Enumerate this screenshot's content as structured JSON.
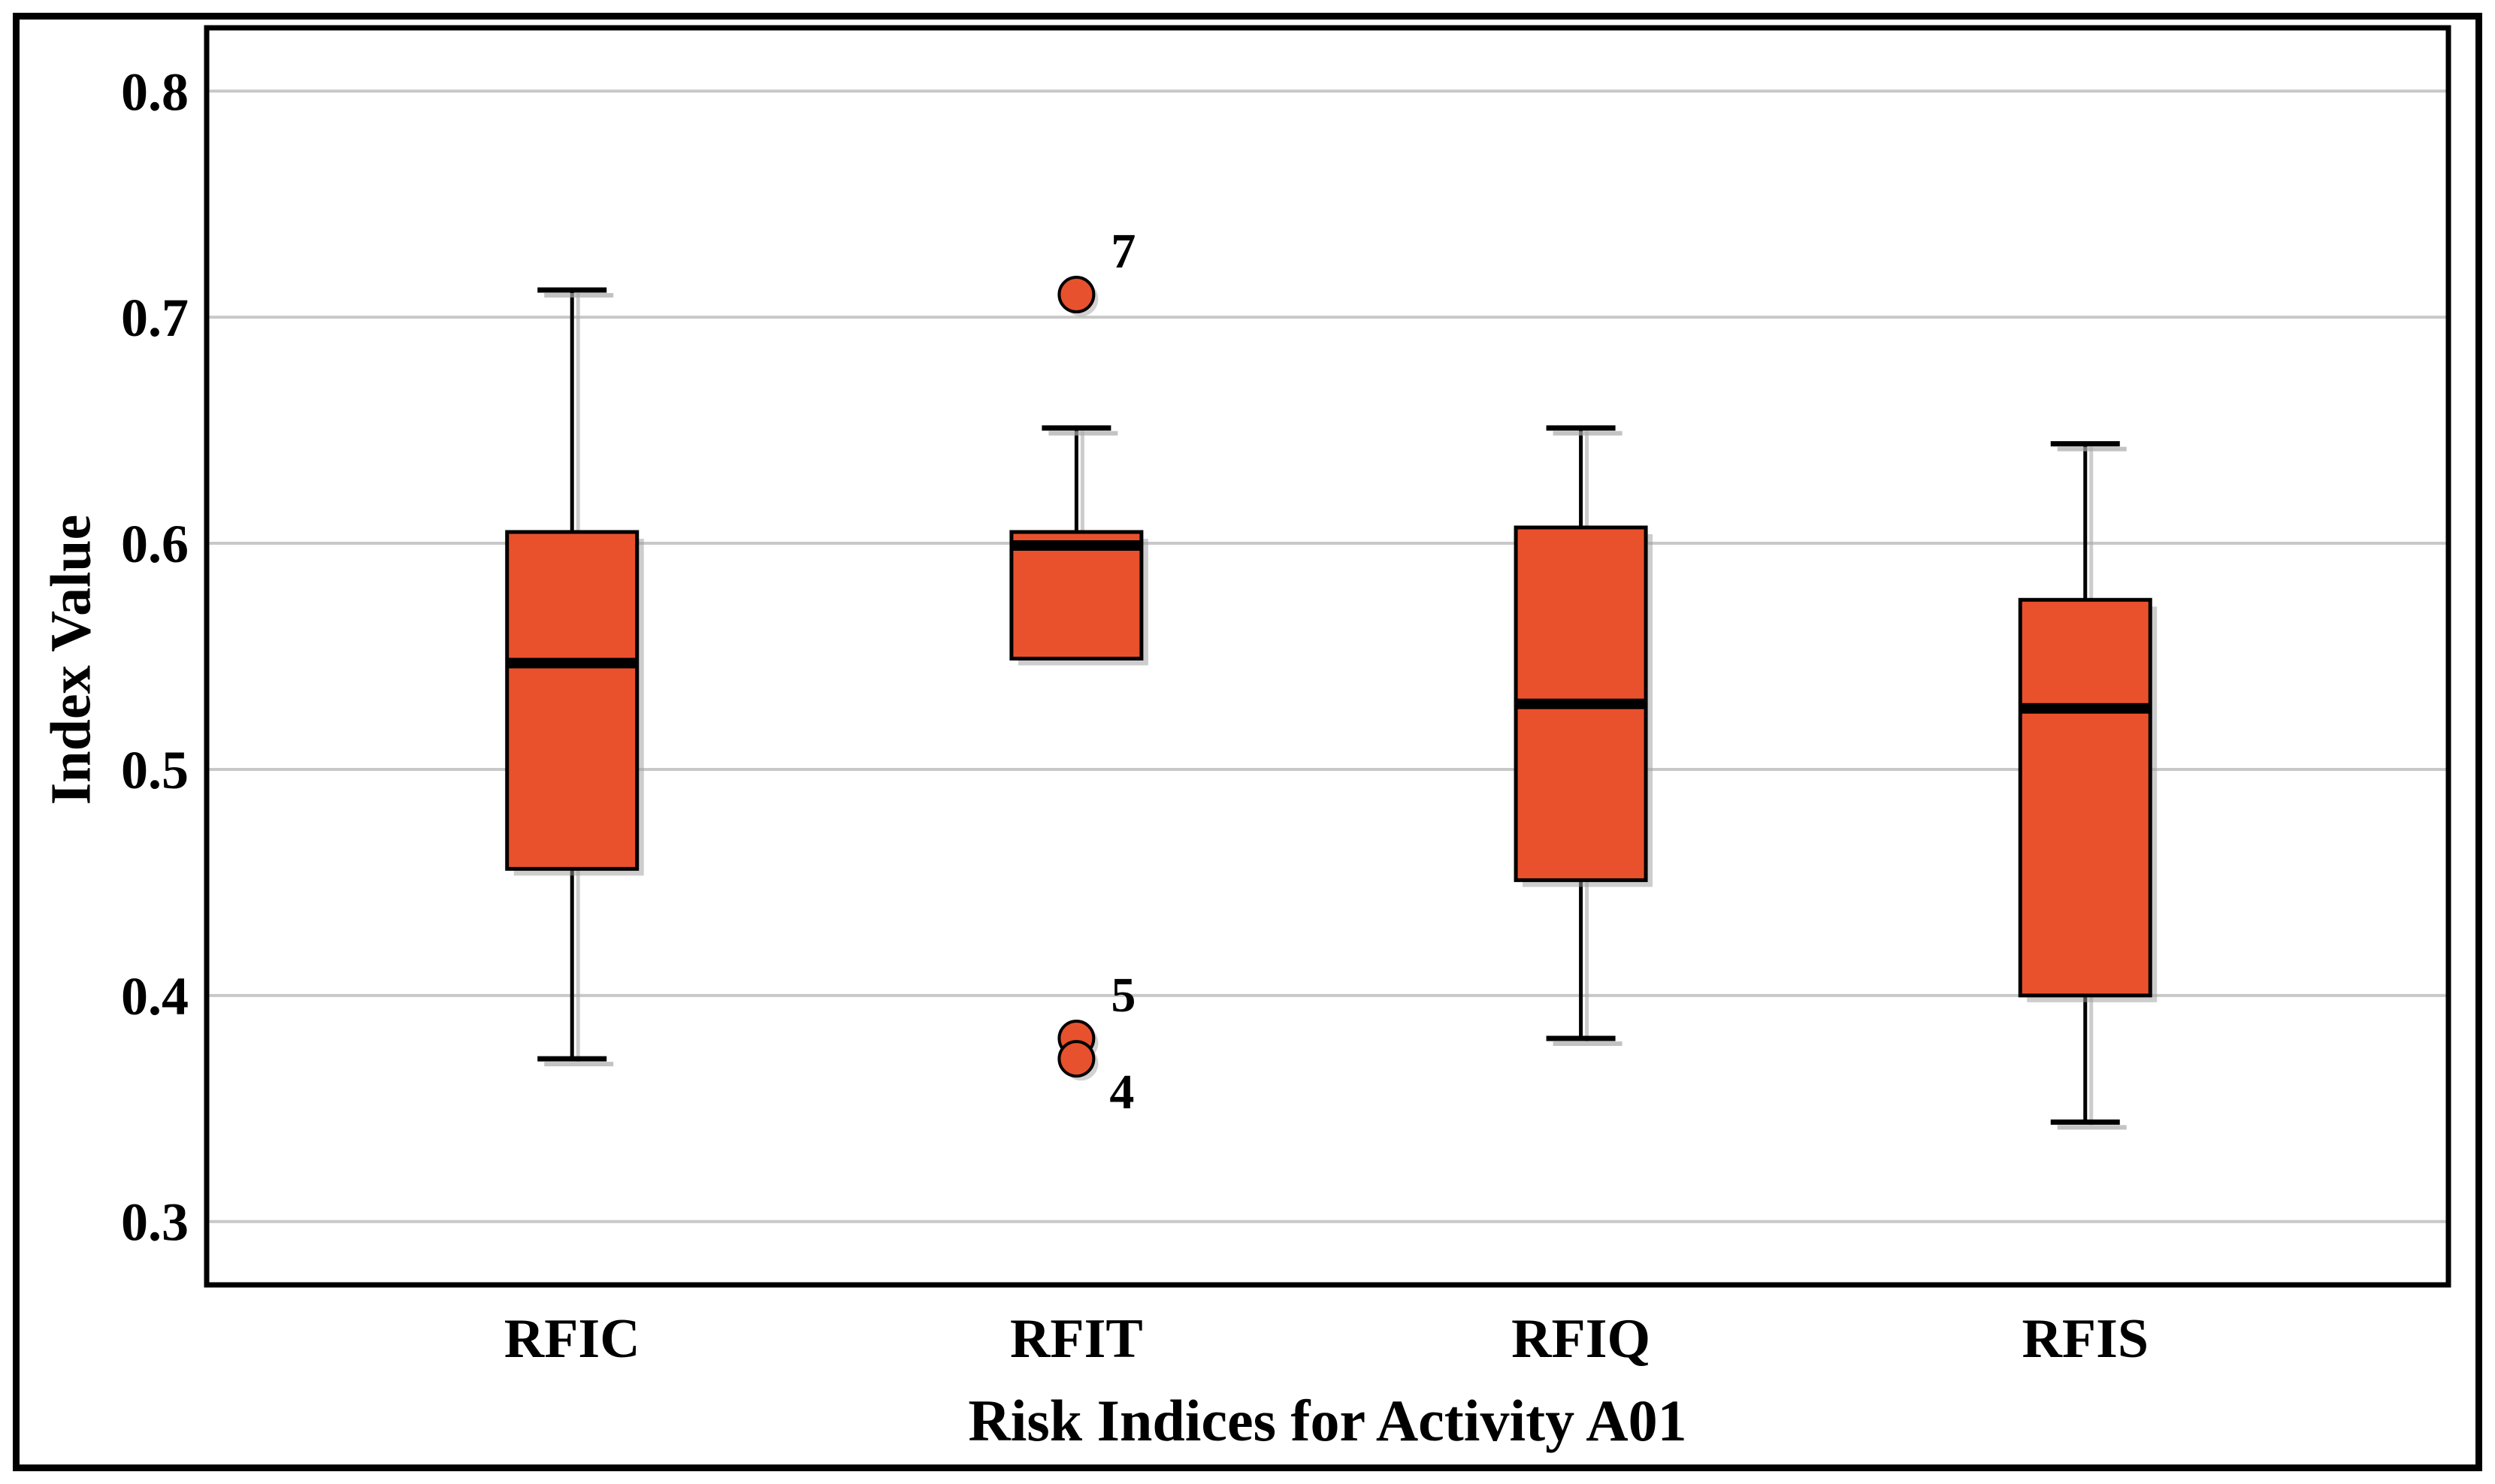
{
  "chart_data": {
    "type": "boxplot",
    "title": "",
    "xlabel": "Risk Indices for Activity A01",
    "ylabel": "Index Value",
    "categories": [
      "RFIC",
      "RFIT",
      "RFIQ",
      "RFIS"
    ],
    "y_ticks": [
      0.3,
      0.4,
      0.5,
      0.6,
      0.7,
      0.8
    ],
    "y_tick_labels": [
      "0.3",
      "0.4",
      "0.5",
      "0.6",
      "0.7",
      "0.8"
    ],
    "ylim": [
      0.272,
      0.828
    ],
    "grid": "horizontal",
    "legend": "none",
    "series": [
      {
        "category": "RFIC",
        "whisker_low": 0.372,
        "q1": 0.456,
        "median": 0.547,
        "q3": 0.605,
        "whisker_high": 0.712,
        "outliers": []
      },
      {
        "category": "RFIT",
        "whisker_low": null,
        "q1": 0.549,
        "median": 0.599,
        "q3": 0.605,
        "whisker_high": 0.651,
        "outliers": [
          {
            "label": "7",
            "value": 0.71,
            "label_pos": "above-right"
          },
          {
            "label": "5",
            "value": 0.381,
            "label_pos": "above-right"
          },
          {
            "label": "4",
            "value": 0.372,
            "label_pos": "below-right"
          }
        ]
      },
      {
        "category": "RFIQ",
        "whisker_low": 0.381,
        "q1": 0.451,
        "median": 0.529,
        "q3": 0.607,
        "whisker_high": 0.651,
        "outliers": []
      },
      {
        "category": "RFIS",
        "whisker_low": 0.344,
        "q1": 0.4,
        "median": 0.527,
        "q3": 0.575,
        "whisker_high": 0.644,
        "outliers": []
      }
    ],
    "colors": {
      "box_fill": "#E9512D",
      "box_border": "#000000",
      "median": "#000000",
      "whisker": "#000000",
      "outlier_fill": "#E8512D",
      "outlier_border": "#000000",
      "gridline": "#C8C8C8",
      "shadow": "#9B9B9B",
      "background": "#FFFFFF",
      "frame": "#000000",
      "text": "#000000"
    }
  }
}
